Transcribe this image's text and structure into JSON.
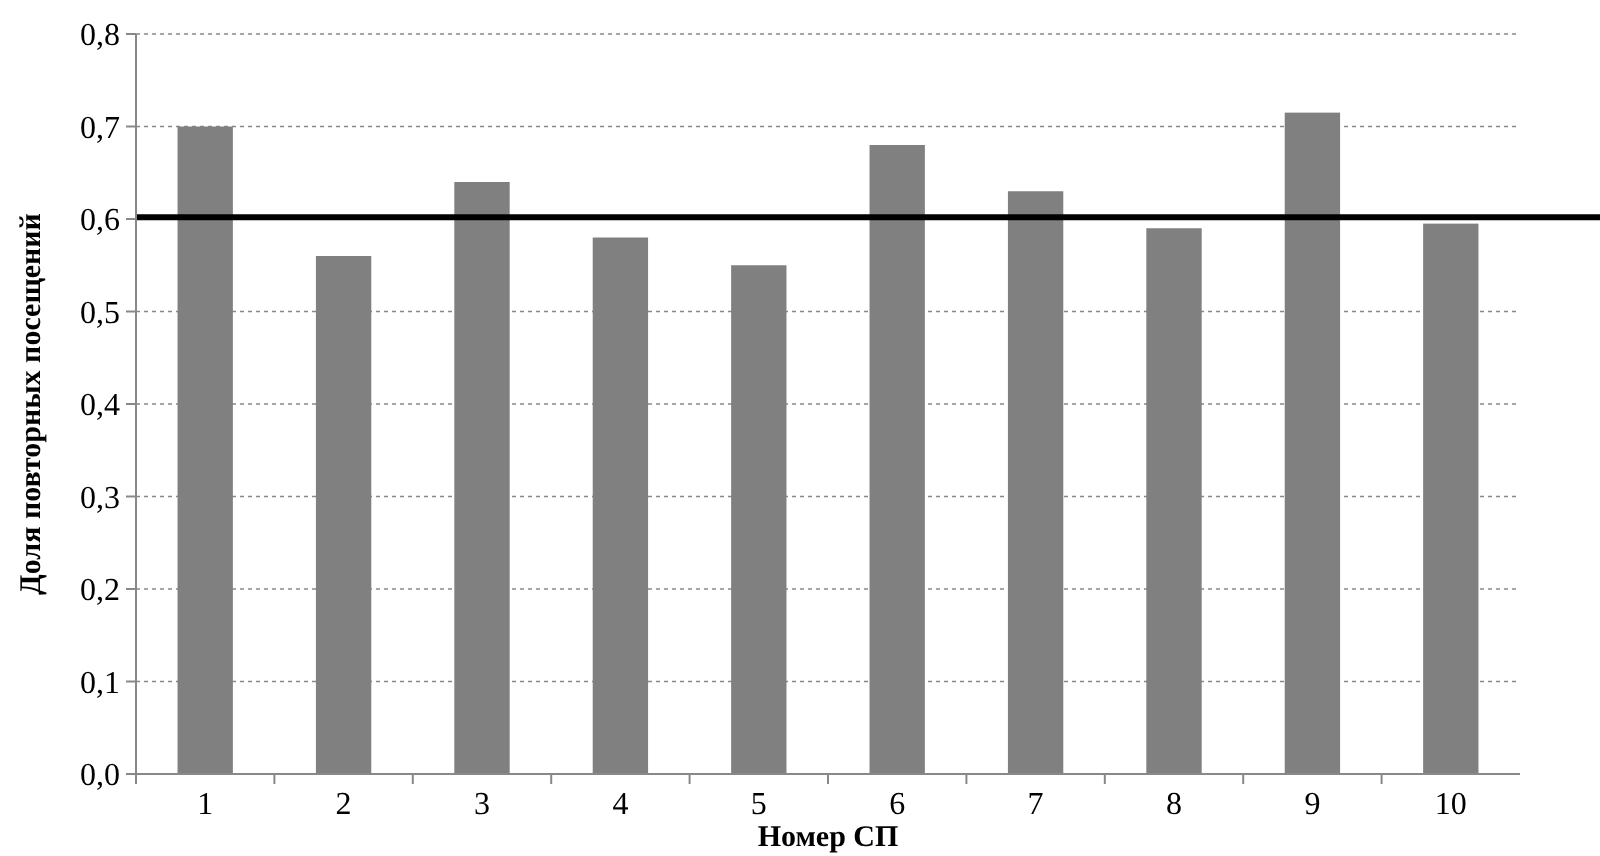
{
  "chart_data": {
    "type": "bar",
    "xlabel": "Номер СП",
    "ylabel": "Доля повторных посещений",
    "categories": [
      "1",
      "2",
      "3",
      "4",
      "5",
      "6",
      "7",
      "8",
      "9",
      "10"
    ],
    "values": [
      0.7,
      0.56,
      0.64,
      0.58,
      0.55,
      0.68,
      0.63,
      0.59,
      0.715,
      0.595
    ],
    "color": "#808080",
    "ylim": [
      0,
      0.8
    ],
    "yticks": [
      {
        "value": 0,
        "label": "0,0"
      },
      {
        "value": 0.1,
        "label": "0,1"
      },
      {
        "value": 0.2,
        "label": "0,2"
      },
      {
        "value": 0.3,
        "label": "0,3"
      },
      {
        "value": 0.4,
        "label": "0,4"
      },
      {
        "value": 0.5,
        "label": "0,5"
      },
      {
        "value": 0.6,
        "label": "0,6"
      },
      {
        "value": 0.7,
        "label": "0,7"
      },
      {
        "value": 0.8,
        "label": "0,8"
      }
    ],
    "grid": "y",
    "ref_lines": [
      {
        "axis": "y",
        "value": 0.602,
        "color": "#000000",
        "line_style": "solid"
      }
    ]
  }
}
